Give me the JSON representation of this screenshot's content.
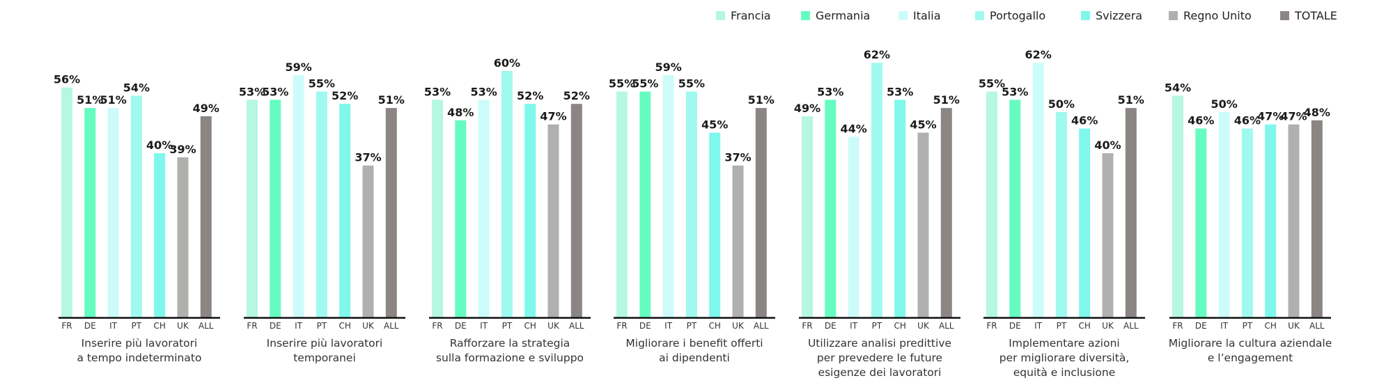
{
  "chart_data": {
    "type": "bar",
    "legend_position": "top-right",
    "grid": false,
    "ylim": [
      0,
      70
    ],
    "series": [
      {
        "name": "Francia",
        "code": "FR",
        "color": "#b5f7e3"
      },
      {
        "name": "Germania",
        "code": "DE",
        "color": "#66fcc1"
      },
      {
        "name": "Italia",
        "code": "IT",
        "color": "#ccfcf9"
      },
      {
        "name": "Portogallo",
        "code": "PT",
        "color": "#9ff9ee"
      },
      {
        "name": "Svizzera",
        "code": "CH",
        "color": "#7ff7ec"
      },
      {
        "name": "Regno Unito",
        "code": "UK",
        "color": "#b2b0ae"
      },
      {
        "name": "TOTALE",
        "code": "ALL",
        "color": "#8b8684"
      }
    ],
    "groups": [
      {
        "label_lines": [
          "Inserire più lavoratori",
          "a tempo indeterminato"
        ],
        "values": [
          56,
          51,
          51,
          54,
          40,
          39,
          49
        ]
      },
      {
        "label_lines": [
          "Inserire più lavoratori",
          "temporanei"
        ],
        "values": [
          53,
          53,
          59,
          55,
          52,
          37,
          51
        ]
      },
      {
        "label_lines": [
          "Rafforzare la strategia",
          "sulla formazione e sviluppo"
        ],
        "values": [
          53,
          48,
          53,
          60,
          52,
          47,
          52
        ]
      },
      {
        "label_lines": [
          "Migliorare i benefit offerti",
          "ai dipendenti"
        ],
        "values": [
          55,
          55,
          59,
          55,
          45,
          37,
          51
        ]
      },
      {
        "label_lines": [
          "Utilizzare analisi predittive",
          "per prevedere le future",
          "esigenze dei lavoratori"
        ],
        "values": [
          49,
          53,
          44,
          62,
          53,
          45,
          51
        ]
      },
      {
        "label_lines": [
          "Implementare azioni",
          "per migliorare diversità,",
          "equità e inclusione"
        ],
        "values": [
          55,
          53,
          62,
          50,
          46,
          40,
          51
        ]
      },
      {
        "label_lines": [
          "Migliorare la cultura aziendale",
          "e l’engagement"
        ],
        "values": [
          54,
          46,
          50,
          46,
          47,
          47,
          48
        ]
      }
    ],
    "value_suffix": "%"
  }
}
